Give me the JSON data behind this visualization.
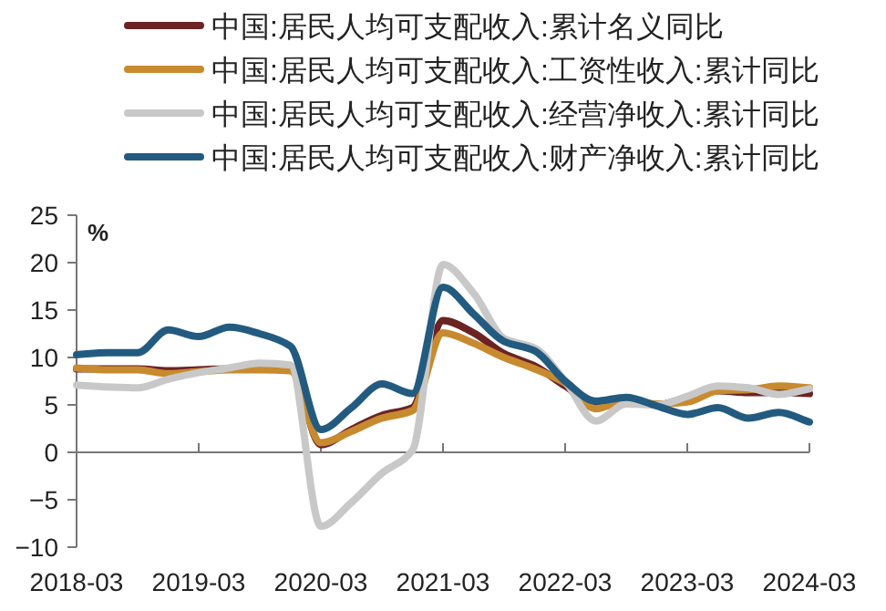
{
  "chart_data": {
    "type": "line",
    "ylabel": "%",
    "legend": "top",
    "marker": "none",
    "line_style": "solid",
    "x": [
      "2018-03",
      "2018-06",
      "2018-09",
      "2018-12",
      "2019-03",
      "2019-06",
      "2019-09",
      "2019-12",
      "2020-03",
      "2020-06",
      "2020-09",
      "2020-12",
      "2021-03",
      "2021-06",
      "2021-09",
      "2021-12",
      "2022-03",
      "2022-06",
      "2022-09",
      "2022-12",
      "2023-03",
      "2023-06",
      "2023-09",
      "2023-12",
      "2024-03"
    ],
    "xlim": [
      "2018-03",
      "2024-03"
    ],
    "xticks": [
      "2018-03",
      "2019-03",
      "2020-03",
      "2021-03",
      "2022-03",
      "2023-03",
      "2024-03"
    ],
    "ylim": [
      -10,
      25
    ],
    "yticks": [
      -10,
      -5,
      0,
      5,
      10,
      15,
      20,
      25
    ],
    "series": [
      {
        "name": "中国:居民人均可支配收入:累计名义同比",
        "color": "#6b2323",
        "values": [
          8.8,
          8.8,
          8.8,
          8.6,
          8.7,
          8.8,
          8.8,
          8.9,
          0.8,
          2.4,
          3.9,
          4.7,
          13.9,
          12.6,
          10.4,
          9.1,
          7.0,
          5.0,
          5.6,
          5.0,
          5.8,
          6.5,
          6.3,
          6.3,
          6.2
        ]
      },
      {
        "name": "中国:居民人均可支配收入:工资性收入:累计同比",
        "color": "#c88a2e",
        "values": [
          8.9,
          8.7,
          8.7,
          8.3,
          8.5,
          8.7,
          8.7,
          8.6,
          1.0,
          2.2,
          3.6,
          4.4,
          12.6,
          11.5,
          10.0,
          8.8,
          7.3,
          4.6,
          5.5,
          5.1,
          5.3,
          6.5,
          6.6,
          7.0,
          6.8
        ]
      },
      {
        "name": "中国:居民人均可支配收入:经营净收入:累计同比",
        "color": "#c8c8c8",
        "values": [
          7.1,
          6.9,
          6.8,
          7.7,
          8.4,
          8.9,
          9.4,
          9.2,
          -7.8,
          -5.3,
          -2.2,
          0.2,
          19.8,
          16.8,
          12.0,
          11.0,
          7.5,
          3.3,
          5.1,
          5.0,
          5.9,
          7.0,
          6.8,
          6.1,
          6.7
        ]
      },
      {
        "name": "中国:居民人均可支配收入:财产净收入:累计同比",
        "color": "#235b80",
        "values": [
          10.3,
          10.5,
          10.5,
          12.9,
          12.2,
          13.2,
          12.5,
          11.2,
          2.4,
          4.7,
          7.2,
          6.2,
          17.4,
          14.6,
          11.7,
          10.7,
          7.5,
          5.4,
          5.8,
          4.9,
          4.0,
          4.7,
          3.6,
          4.2,
          3.2
        ]
      }
    ]
  }
}
